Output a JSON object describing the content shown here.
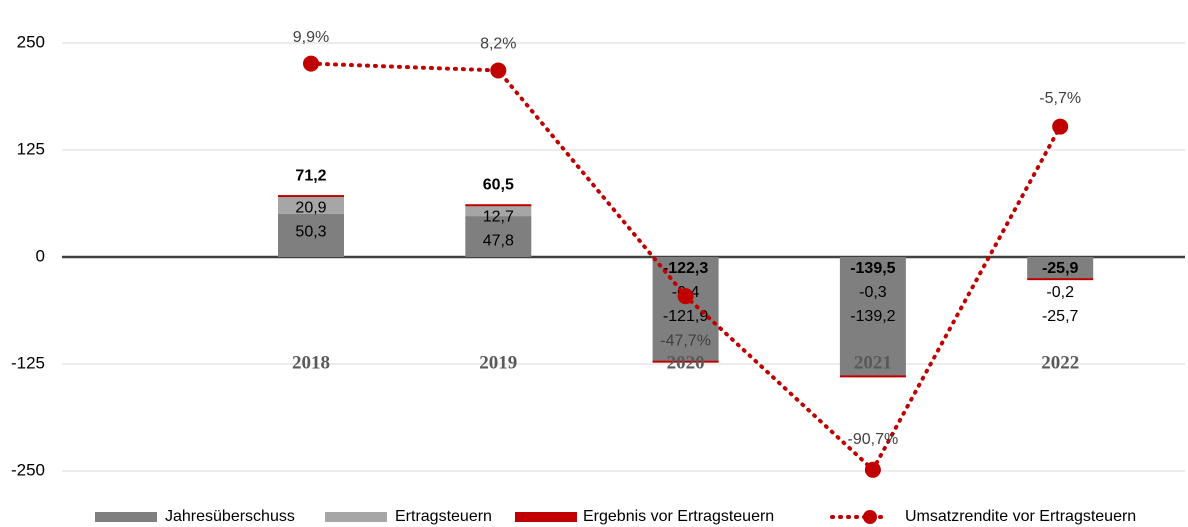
{
  "chart_data": {
    "type": "bar",
    "categories": [
      "2018",
      "2019",
      "2020",
      "2021",
      "2022"
    ],
    "series": [
      {
        "name": "Jahresüberschuss",
        "color": "#7f7f7f",
        "values": [
          50.3,
          47.8,
          -121.9,
          -139.2,
          -25.7
        ],
        "value_labels": [
          "50,3",
          "47,8",
          "-121,9",
          "-139,2",
          "-25,7"
        ]
      },
      {
        "name": "Ertragsteuern",
        "color": "#a6a6a6",
        "values": [
          20.9,
          12.7,
          -0.4,
          -0.3,
          -0.2
        ],
        "value_labels": [
          "20,9",
          "12,7",
          "-0,4",
          "-0,3",
          "-0,2"
        ]
      },
      {
        "name": "Ergebnis vor Ertragsteuern",
        "color": "#c00000",
        "values": [
          71.2,
          60.5,
          -122.3,
          -139.5,
          -25.9
        ],
        "value_labels": [
          "71,2",
          "60,5",
          "-122,3",
          "-139,5",
          "-25,9"
        ]
      },
      {
        "name": "Umsatzrendite vor Ertragsteuern",
        "color": "#c00000",
        "type": "line",
        "axis": "y2",
        "values": [
          9.9,
          8.2,
          -47.7,
          -90.7,
          -5.7
        ],
        "value_labels": [
          "9,9%",
          "8,2%",
          "-47,7%",
          "-90,7%",
          "-5,7%"
        ]
      }
    ],
    "ylim": [
      -250,
      250
    ],
    "yticks": [
      250,
      125,
      0,
      -125,
      -250
    ],
    "y2lim": [
      -91,
      15
    ],
    "grid": true,
    "legend": "bottom"
  }
}
